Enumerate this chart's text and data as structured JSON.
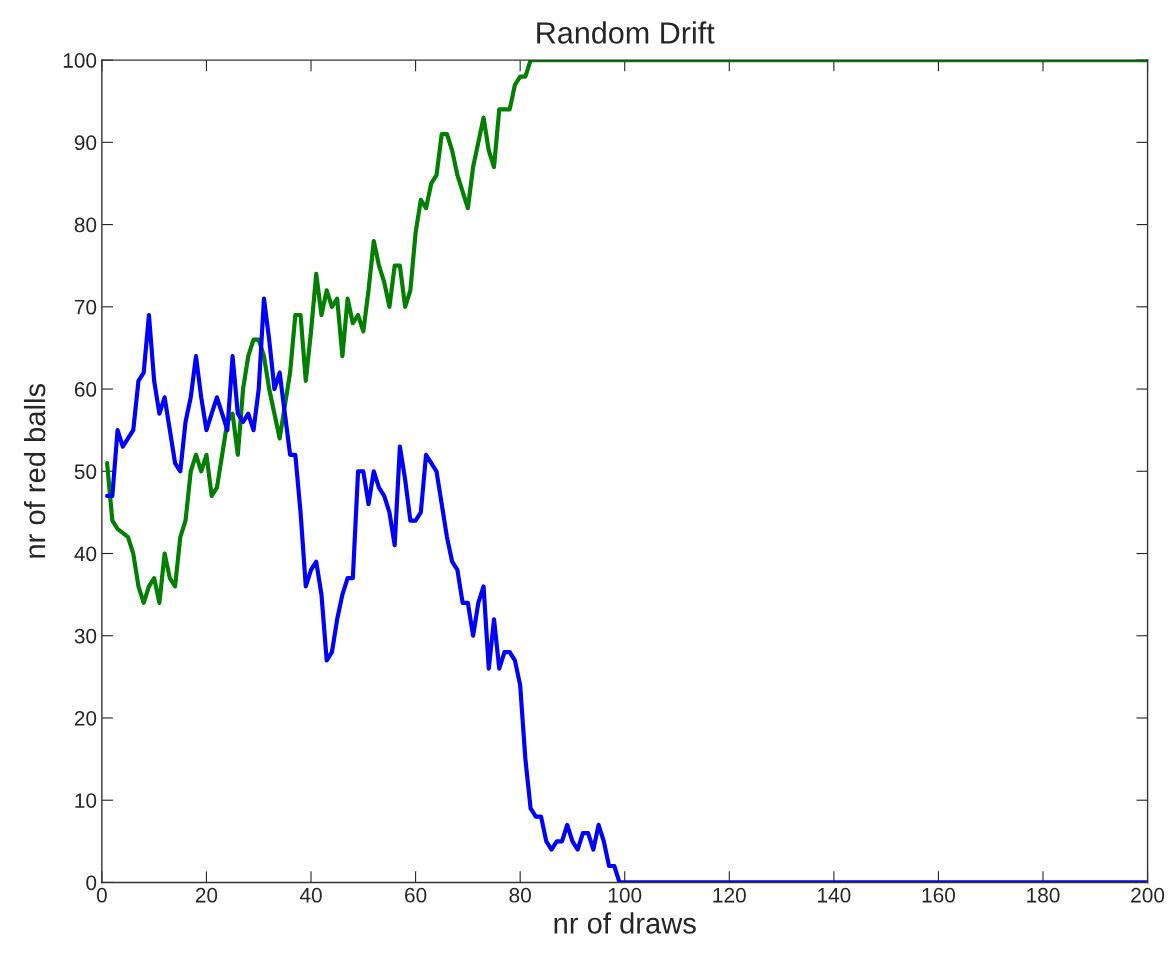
{
  "chart_data": {
    "type": "line",
    "title": "Random Drift",
    "xlabel": "nr of draws",
    "ylabel": "nr of red balls",
    "xlim": [
      0,
      200
    ],
    "xticks": [
      0,
      20,
      40,
      60,
      80,
      100,
      120,
      140,
      160,
      180,
      200
    ],
    "ylim": [
      0,
      100
    ],
    "yticks": [
      0,
      10,
      20,
      30,
      40,
      50,
      60,
      70,
      80,
      90,
      100
    ],
    "grid": false,
    "line_style": "solid",
    "series": [
      {
        "color": "#007f00",
        "x": [
          1,
          2,
          3,
          5,
          6,
          7,
          8,
          9,
          10,
          11,
          12,
          13,
          14,
          15,
          16,
          17,
          18,
          19,
          20,
          21,
          22,
          23,
          24,
          25,
          26,
          27,
          28,
          29,
          30,
          31,
          32,
          33,
          34,
          35,
          36,
          37,
          38,
          39,
          40,
          41,
          42,
          43,
          44,
          45,
          46,
          47,
          48,
          49,
          50,
          51,
          52,
          53,
          54,
          55,
          56,
          57,
          58,
          59,
          60,
          61,
          62,
          63,
          64,
          65,
          66,
          67,
          68,
          69,
          70,
          71,
          72,
          73,
          74,
          75,
          76,
          77,
          78,
          79,
          80,
          81,
          82,
          200
        ],
        "values": [
          51,
          44,
          43,
          42,
          40,
          36,
          34,
          36,
          37,
          34,
          40,
          37,
          36,
          42,
          44,
          50,
          52,
          50,
          52,
          47,
          48,
          52,
          56,
          57,
          52,
          60,
          64,
          66,
          66,
          64,
          60,
          57,
          54,
          58,
          62,
          69,
          69,
          61,
          67,
          74,
          69,
          72,
          70,
          71,
          64,
          71,
          68,
          69,
          67,
          72,
          78,
          75,
          73,
          70,
          75,
          75,
          70,
          72,
          79,
          83,
          82,
          85,
          86,
          91,
          91,
          89,
          86,
          84,
          82,
          87,
          90,
          93,
          89,
          87,
          94,
          94,
          94,
          97,
          98,
          98,
          100,
          100
        ]
      },
      {
        "color": "#0000ff",
        "x": [
          1,
          2,
          3,
          4,
          5,
          6,
          7,
          8,
          9,
          10,
          11,
          12,
          13,
          14,
          15,
          16,
          17,
          18,
          19,
          20,
          21,
          22,
          23,
          24,
          25,
          26,
          27,
          28,
          29,
          30,
          31,
          32,
          33,
          34,
          35,
          36,
          37,
          38,
          39,
          40,
          41,
          42,
          43,
          44,
          45,
          46,
          47,
          48,
          49,
          50,
          51,
          52,
          53,
          54,
          55,
          56,
          57,
          58,
          59,
          60,
          61,
          62,
          63,
          64,
          65,
          66,
          67,
          68,
          69,
          70,
          71,
          72,
          73,
          74,
          75,
          76,
          77,
          78,
          79,
          80,
          81,
          82,
          83,
          84,
          85,
          86,
          87,
          88,
          89,
          90,
          91,
          92,
          93,
          94,
          95,
          96,
          97,
          98,
          99,
          200
        ],
        "values": [
          47,
          47,
          55,
          53,
          54,
          55,
          61,
          62,
          69,
          61,
          57,
          59,
          55,
          51,
          50,
          56,
          59,
          64,
          59,
          55,
          57,
          59,
          57,
          55,
          64,
          57,
          56,
          57,
          55,
          60,
          71,
          66,
          60,
          62,
          57,
          52,
          52,
          45,
          36,
          38,
          39,
          35,
          27,
          28,
          32,
          35,
          37,
          37,
          50,
          50,
          46,
          50,
          48,
          47,
          45,
          41,
          53,
          49,
          44,
          44,
          45,
          52,
          51,
          50,
          46,
          42,
          39,
          38,
          34,
          34,
          30,
          34,
          36,
          26,
          32,
          26,
          28,
          28,
          27,
          24,
          15,
          9,
          8,
          8,
          5,
          4,
          5,
          5,
          7,
          5,
          4,
          6,
          6,
          4,
          7,
          5,
          2,
          2,
          0,
          0
        ]
      }
    ]
  }
}
